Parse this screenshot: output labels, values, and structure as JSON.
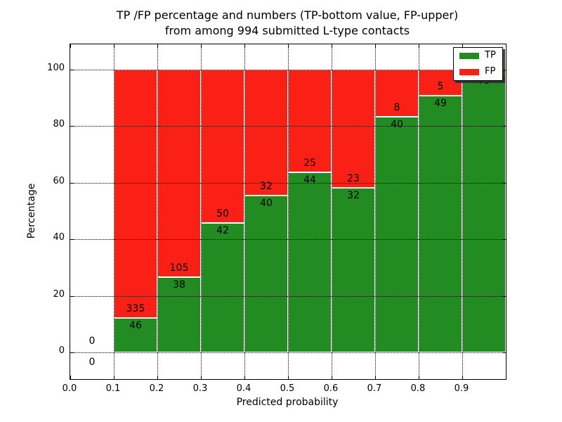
{
  "title": {
    "line1": "TP /FP percentage and numbers (TP-bottom value, FP-upper)",
    "line2": "from among 994 submitted L-type contacts"
  },
  "axes": {
    "xlabel": "Predicted probability",
    "ylabel": "Percentage"
  },
  "legend": {
    "position": "upper right",
    "entries": [
      {
        "label": "TP",
        "color": "#228b22"
      },
      {
        "label": "FP",
        "color": "#fb2016"
      }
    ]
  },
  "colors": {
    "tp": "#228b22",
    "fp": "#fb2016",
    "bar_edge": "#ffffff",
    "grid": "#000000",
    "background": "#ffffff"
  },
  "chart_data": {
    "type": "bar",
    "variant": "stacked-100-percent",
    "title": "TP /FP percentage and numbers (TP-bottom value, FP-upper) from among 994 submitted L-type contacts",
    "xlabel": "Predicted probability",
    "ylabel": "Percentage",
    "x_tick_labels": [
      "0.0",
      "0.1",
      "0.2",
      "0.3",
      "0.4",
      "0.5",
      "0.6",
      "0.7",
      "0.8",
      "0.9"
    ],
    "y_tick_values": [
      0,
      20,
      40,
      60,
      80,
      100
    ],
    "xlim": [
      0.0,
      1.0
    ],
    "ylim": [
      -9.5,
      109.5
    ],
    "grid": "dotted, drawn over bars",
    "legend_position": "upper right",
    "total_contacts": 994,
    "series": [
      {
        "name": "TP",
        "role": "bottom",
        "color": "#228b22"
      },
      {
        "name": "FP",
        "role": "top",
        "color": "#fb2016"
      }
    ],
    "bins": [
      {
        "x_start": 0.0,
        "x_end": 0.1,
        "tp": 0,
        "fp": 0,
        "note": "no bar, labels 0 above and 0 below axis"
      },
      {
        "x_start": 0.1,
        "x_end": 0.2,
        "tp": 46,
        "fp": 335
      },
      {
        "x_start": 0.2,
        "x_end": 0.3,
        "tp": 38,
        "fp": 105
      },
      {
        "x_start": 0.3,
        "x_end": 0.4,
        "tp": 42,
        "fp": 50
      },
      {
        "x_start": 0.4,
        "x_end": 0.5,
        "tp": 40,
        "fp": 32
      },
      {
        "x_start": 0.5,
        "x_end": 0.6,
        "tp": 44,
        "fp": 25
      },
      {
        "x_start": 0.6,
        "x_end": 0.7,
        "tp": 32,
        "fp": 23
      },
      {
        "x_start": 0.7,
        "x_end": 0.8,
        "tp": 40,
        "fp": 8
      },
      {
        "x_start": 0.8,
        "x_end": 0.9,
        "tp": 49,
        "fp": 5
      },
      {
        "x_start": 0.9,
        "x_end": 1.0,
        "tp": 79,
        "fp": 1,
        "fp_label_hidden": true
      }
    ]
  }
}
